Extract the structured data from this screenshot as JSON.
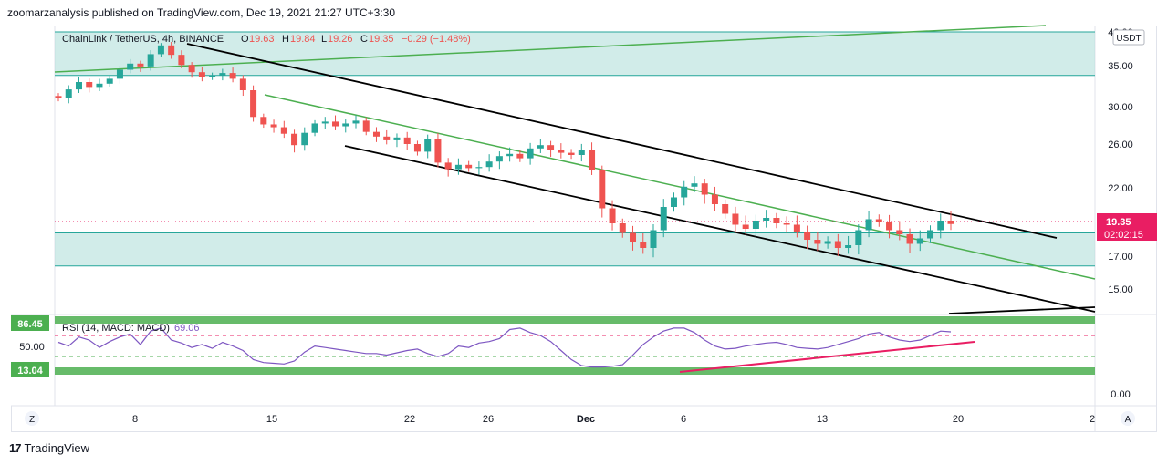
{
  "header": {
    "published": "zoomarzanalysis published on TradingView.com, Dec 19, 2021 21:27 UTC+3:30"
  },
  "legend": {
    "symbol": "ChainLink / TetherUS, 4h, BINANCE",
    "o_label": "O",
    "o_value": "19.63",
    "h_label": "H",
    "h_value": "19.84",
    "l_label": "L",
    "l_value": "19.26",
    "c_label": "C",
    "c_value": "19.35",
    "change": "−0.29 (−1.48%)"
  },
  "rsi_legend": {
    "label": "RSI (14, MACD: MACD)",
    "value": "69.06"
  },
  "currency": "USDT",
  "price_badge": {
    "price": "19.35",
    "countdown": "02:02:15"
  },
  "rsi_badges": {
    "upper": "86.45",
    "lower": "13.04"
  },
  "footer": {
    "brand": "TradingView"
  },
  "buttons": {
    "zoom": "Z",
    "auto": "A"
  },
  "colors": {
    "up": "#26a69a",
    "down": "#ef5350",
    "zone_fill": "#b2dfdb",
    "channel": "#000000",
    "mid_line": "#4caf50",
    "badge_red": "#e91e63",
    "rsi_line": "#7e57c2",
    "green_badge": "#4caf50",
    "rsi_trend": "#e91e63"
  },
  "chart_data": {
    "type": "candlestick",
    "y_ticks": [
      "40.00",
      "35.00",
      "30.00",
      "26.00",
      "22.00",
      "17.00",
      "15.00"
    ],
    "rsi_ticks": [
      "50.00",
      "0.00"
    ],
    "x_ticks": [
      "8",
      "15",
      "22",
      "26",
      "Dec",
      "6",
      "13",
      "20",
      "2"
    ],
    "last_price": 19.35,
    "zones": [
      {
        "from": 33.8,
        "to": 40.0
      },
      {
        "from": 16.4,
        "to": 18.7
      }
    ],
    "close_series": [
      31.0,
      32.1,
      33.0,
      32.4,
      32.8,
      33.4,
      34.5,
      35.3,
      34.9,
      36.7,
      38.0,
      36.6,
      35.1,
      34.2,
      33.6,
      33.8,
      34.1,
      33.4,
      32.0,
      28.9,
      28.1,
      27.8,
      27.1,
      25.9,
      27.2,
      28.2,
      28.4,
      27.9,
      28.2,
      28.5,
      27.3,
      26.8,
      26.4,
      26.7,
      26.0,
      25.3,
      26.5,
      24.3,
      23.7,
      24.1,
      23.8,
      23.9,
      24.4,
      24.9,
      25.1,
      24.7,
      25.6,
      25.9,
      25.5,
      25.2,
      25.0,
      25.5,
      23.6,
      20.5,
      19.4,
      18.7,
      18.0,
      17.6,
      18.9,
      20.6,
      21.3,
      22.1,
      22.4,
      21.5,
      20.8,
      20.1,
      19.3,
      19.0,
      19.6,
      19.8,
      19.4,
      19.3,
      18.8,
      18.2,
      17.9,
      18.1,
      17.6,
      17.8,
      18.9,
      19.7,
      19.5,
      18.9,
      18.6,
      17.9,
      18.3,
      18.9,
      19.6,
      19.35
    ],
    "rsi_series": [
      55,
      50,
      62,
      58,
      48,
      56,
      62,
      66,
      52,
      70,
      74,
      58,
      54,
      48,
      52,
      47,
      55,
      50,
      44,
      32,
      28,
      27,
      26,
      30,
      42,
      50,
      48,
      46,
      44,
      42,
      40,
      40,
      38,
      41,
      44,
      46,
      40,
      36,
      40,
      50,
      48,
      54,
      56,
      60,
      72,
      74,
      68,
      64,
      56,
      44,
      32,
      24,
      22,
      22,
      23,
      25,
      38,
      52,
      62,
      70,
      74,
      74,
      68,
      58,
      50,
      46,
      47,
      50,
      52,
      54,
      55,
      52,
      48,
      47,
      46,
      48,
      52,
      56,
      60,
      66,
      68,
      62,
      58,
      56,
      58,
      64,
      70,
      69
    ]
  }
}
